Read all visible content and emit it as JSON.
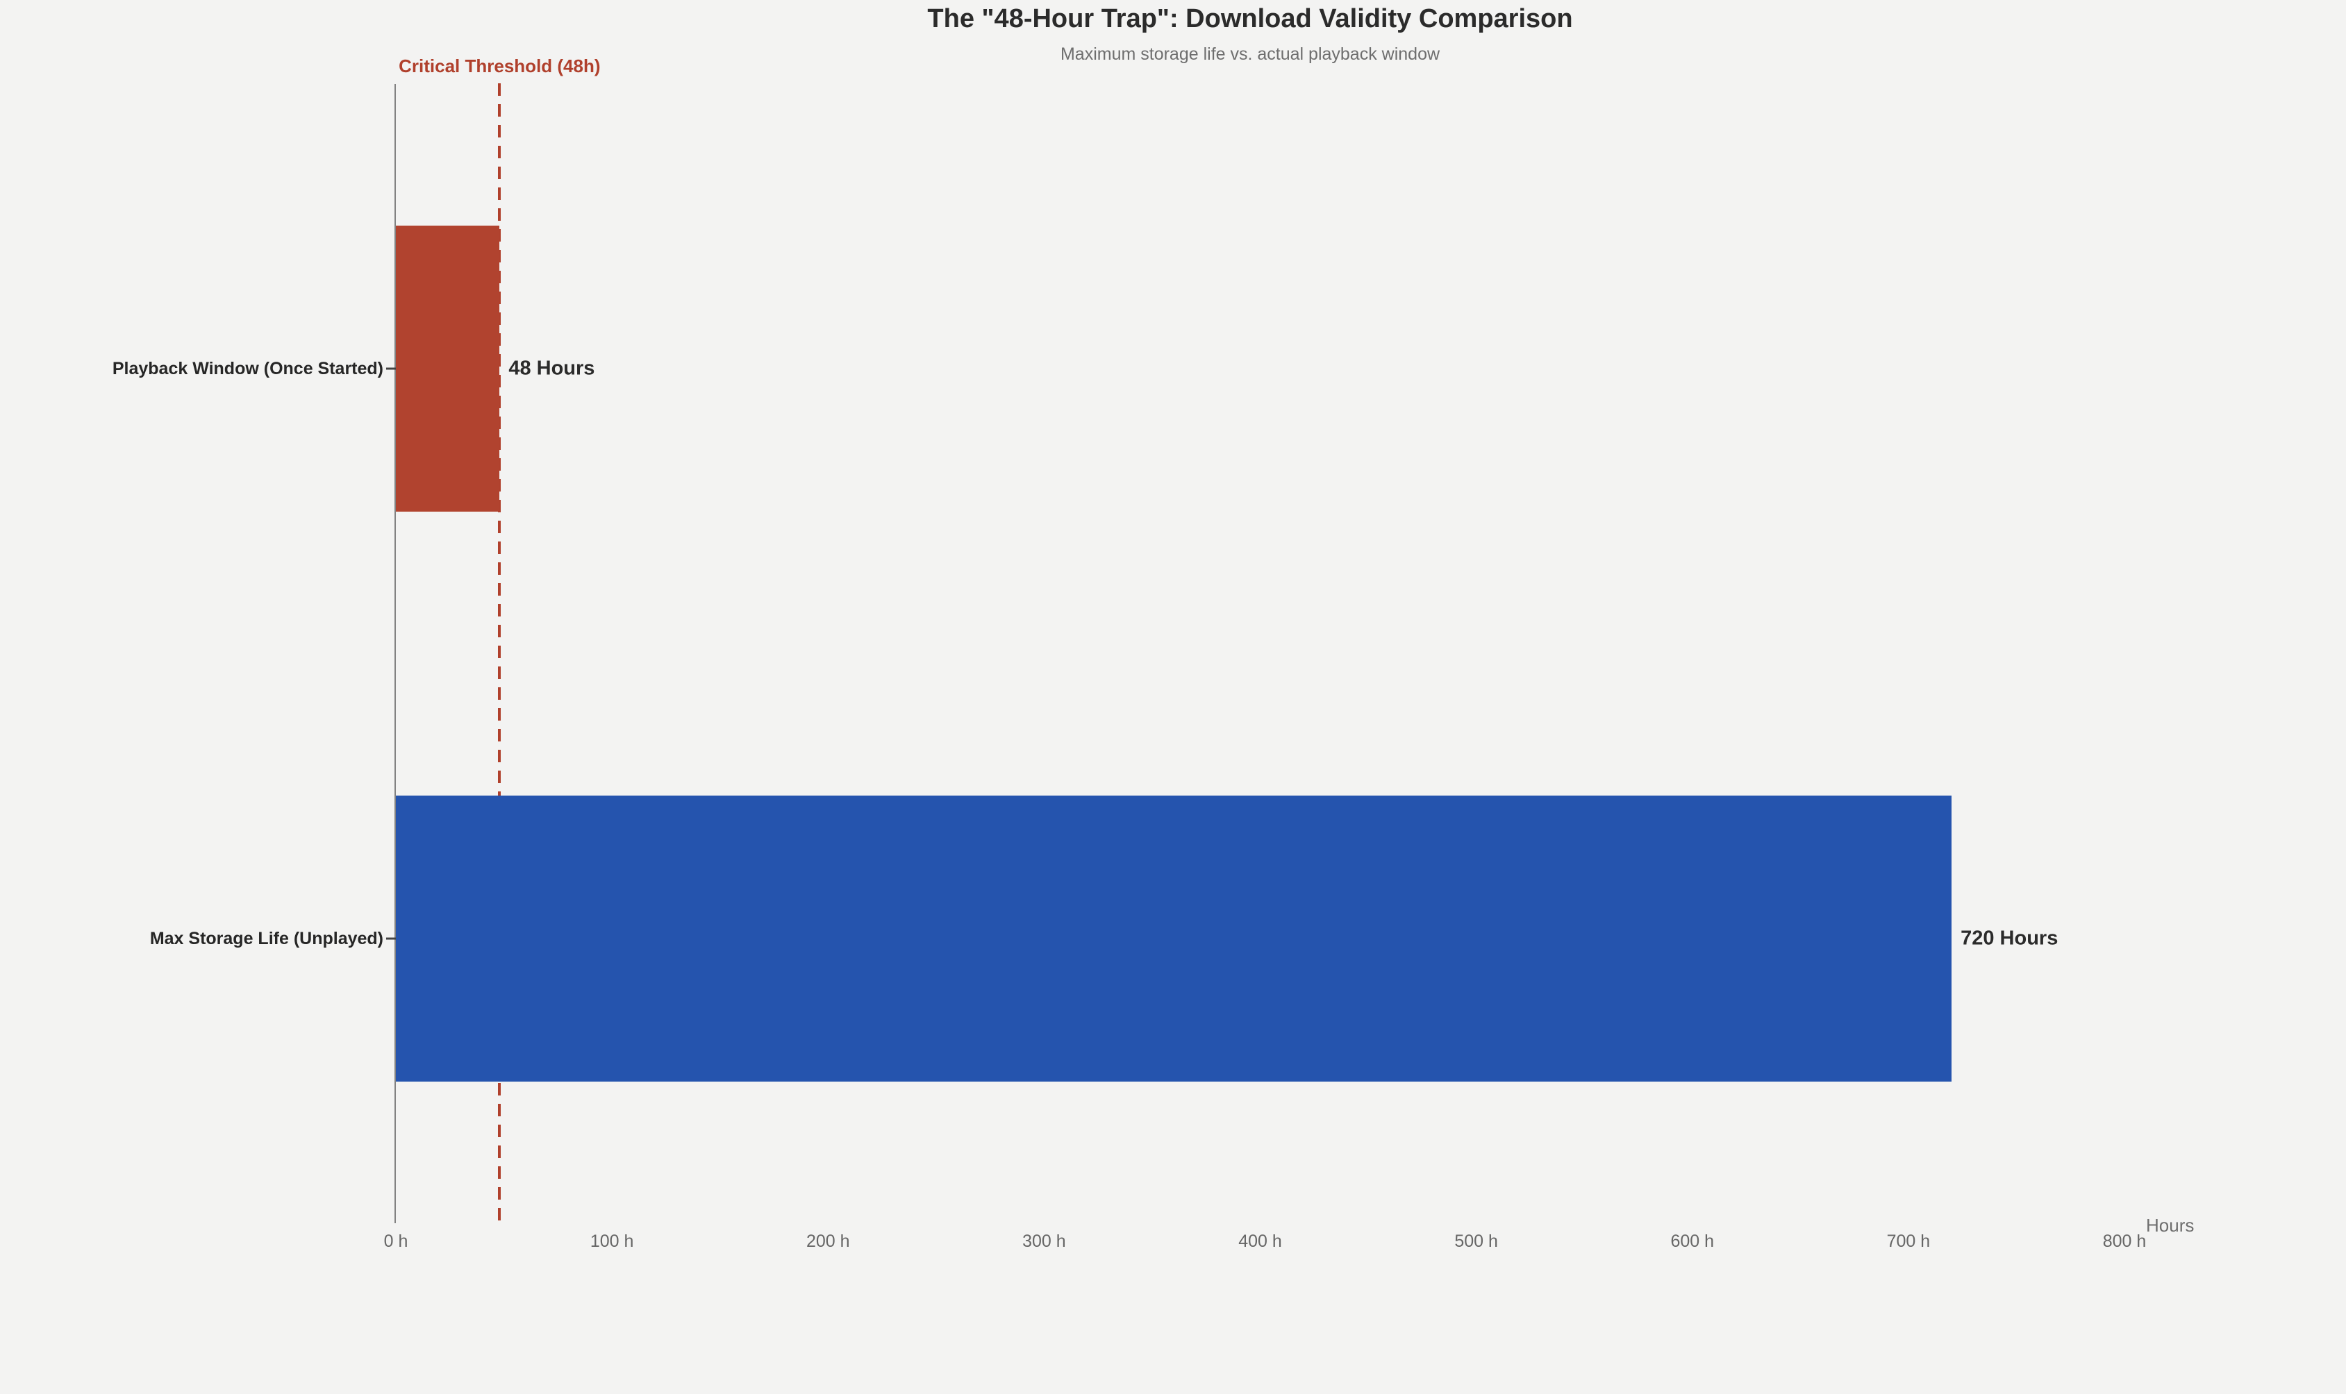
{
  "page": {
    "background_color": "#f3f3f2"
  },
  "chart_data": {
    "type": "bar",
    "orientation": "horizontal",
    "title": "The \"48-Hour Trap\": Download Validity Comparison",
    "subtitle": "Maximum storage life vs. actual playback window",
    "xlabel": "Hours",
    "categories": [
      "Playback Window (Once Started)",
      "Max Storage Life (Unplayed)"
    ],
    "values": [
      48,
      720
    ],
    "value_labels": [
      "48 Hours",
      "720 Hours"
    ],
    "bar_colors": [
      "#b1432f",
      "#2554ae"
    ],
    "value_label_color": "#2b2b2b",
    "category_label_color": "#262626",
    "xlim": [
      0,
      800
    ],
    "x_ticks": [
      0,
      100,
      200,
      300,
      400,
      500,
      600,
      700,
      800
    ],
    "x_tick_labels": [
      "0 h",
      "100 h",
      "200 h",
      "300 h",
      "400 h",
      "500 h",
      "600 h",
      "700 h",
      "800 h"
    ],
    "threshold": {
      "value": 48,
      "label": "Critical Threshold (48h)",
      "color": "#b0402c",
      "style": "dashed"
    },
    "grid": false,
    "legend": false,
    "axis_line_color": "#828282",
    "tick_label_color": "#666666"
  }
}
